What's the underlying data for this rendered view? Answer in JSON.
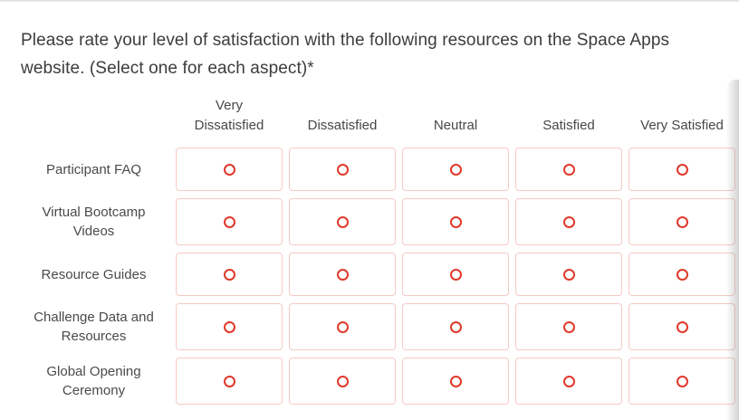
{
  "question": {
    "title": "Please rate your level of satisfaction with the following resources on the Space Apps website. (Select one for each aspect)*"
  },
  "matrix": {
    "column_headers": [
      "Very Dissatisfied",
      "Dissatisfied",
      "Neutral",
      "Satisfied",
      "Very Satisfied"
    ],
    "rows": [
      {
        "label": "Participant FAQ",
        "selected": null
      },
      {
        "label": "Virtual Bootcamp Videos",
        "selected": null
      },
      {
        "label": "Resource Guides",
        "selected": null
      },
      {
        "label": "Challenge Data and Resources",
        "selected": null
      },
      {
        "label": "Global Opening Ceremony",
        "selected": null
      }
    ]
  },
  "colors": {
    "radio": "#e0392b",
    "cell_border": "#f4cac4",
    "title_text": "#3c3c3c",
    "label_text": "#4a4a4a",
    "scroll_shadow_edge": "#c8c8c8"
  }
}
